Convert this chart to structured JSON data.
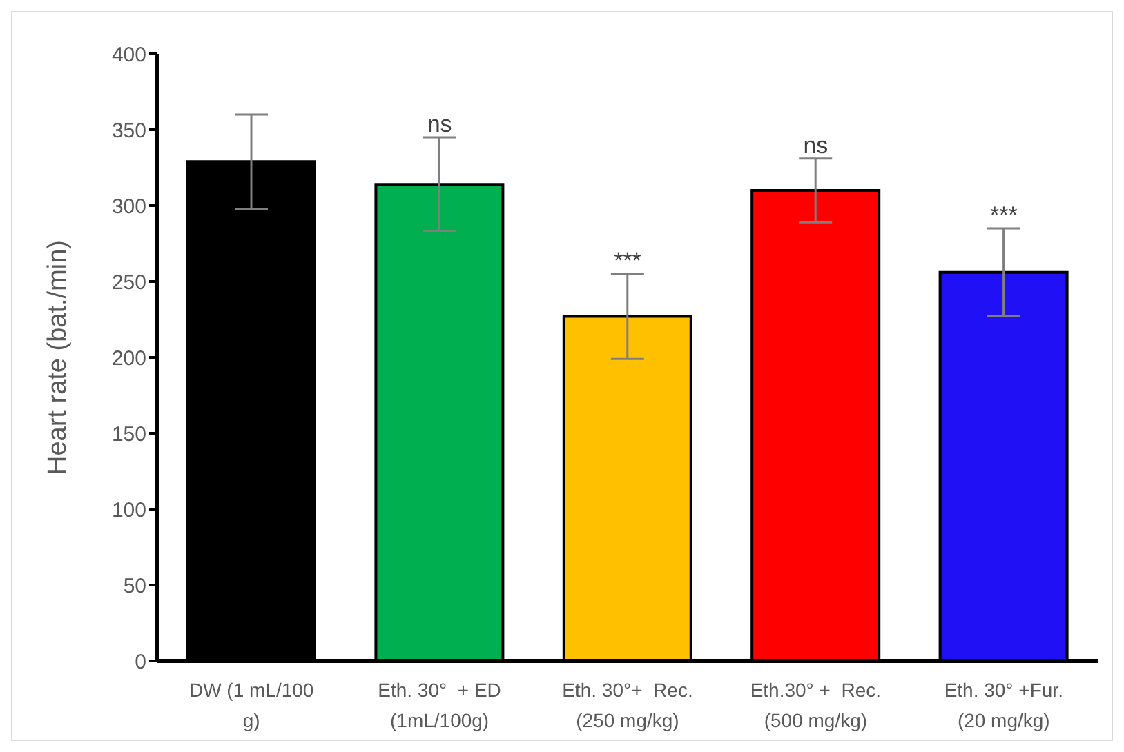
{
  "chart_data": {
    "type": "bar",
    "ylabel": "Heart rate (bat./min)",
    "categories": [
      "DW (1 mL/100\ng)",
      "Eth. 30°  + ED\n(1mL/100g)",
      "Eth. 30°+  Rec.\n(250 mg/kg)",
      "Eth.30° +  Rec.\n(500 mg/kg)",
      "Eth. 30° +Fur.\n(20 mg/kg)"
    ],
    "values": [
      329,
      314,
      227,
      310,
      256
    ],
    "colors": [
      "#000000",
      "#00b050",
      "#ffc000",
      "#ff0000",
      "#1f10f5"
    ],
    "errors": [
      31,
      31,
      28,
      21,
      29
    ],
    "ylim": [
      0,
      400
    ],
    "yticks": [
      0,
      50,
      100,
      150,
      200,
      250,
      300,
      350,
      400
    ],
    "grid": false,
    "annotations": [
      {
        "text": "ns",
        "x": "Eth. 30°  + ED\n(1mL/100g)",
        "y": 345
      },
      {
        "text": "***",
        "x": "Eth. 30°+  Rec.\n(250 mg/kg)",
        "y": 255
      },
      {
        "text": "ns",
        "x": "Eth.30° +  Rec.\n(500 mg/kg)",
        "y": 331
      },
      {
        "text": "***",
        "x": "Eth. 30° +Fur.\n(20 mg/kg)",
        "y": 285
      }
    ]
  }
}
